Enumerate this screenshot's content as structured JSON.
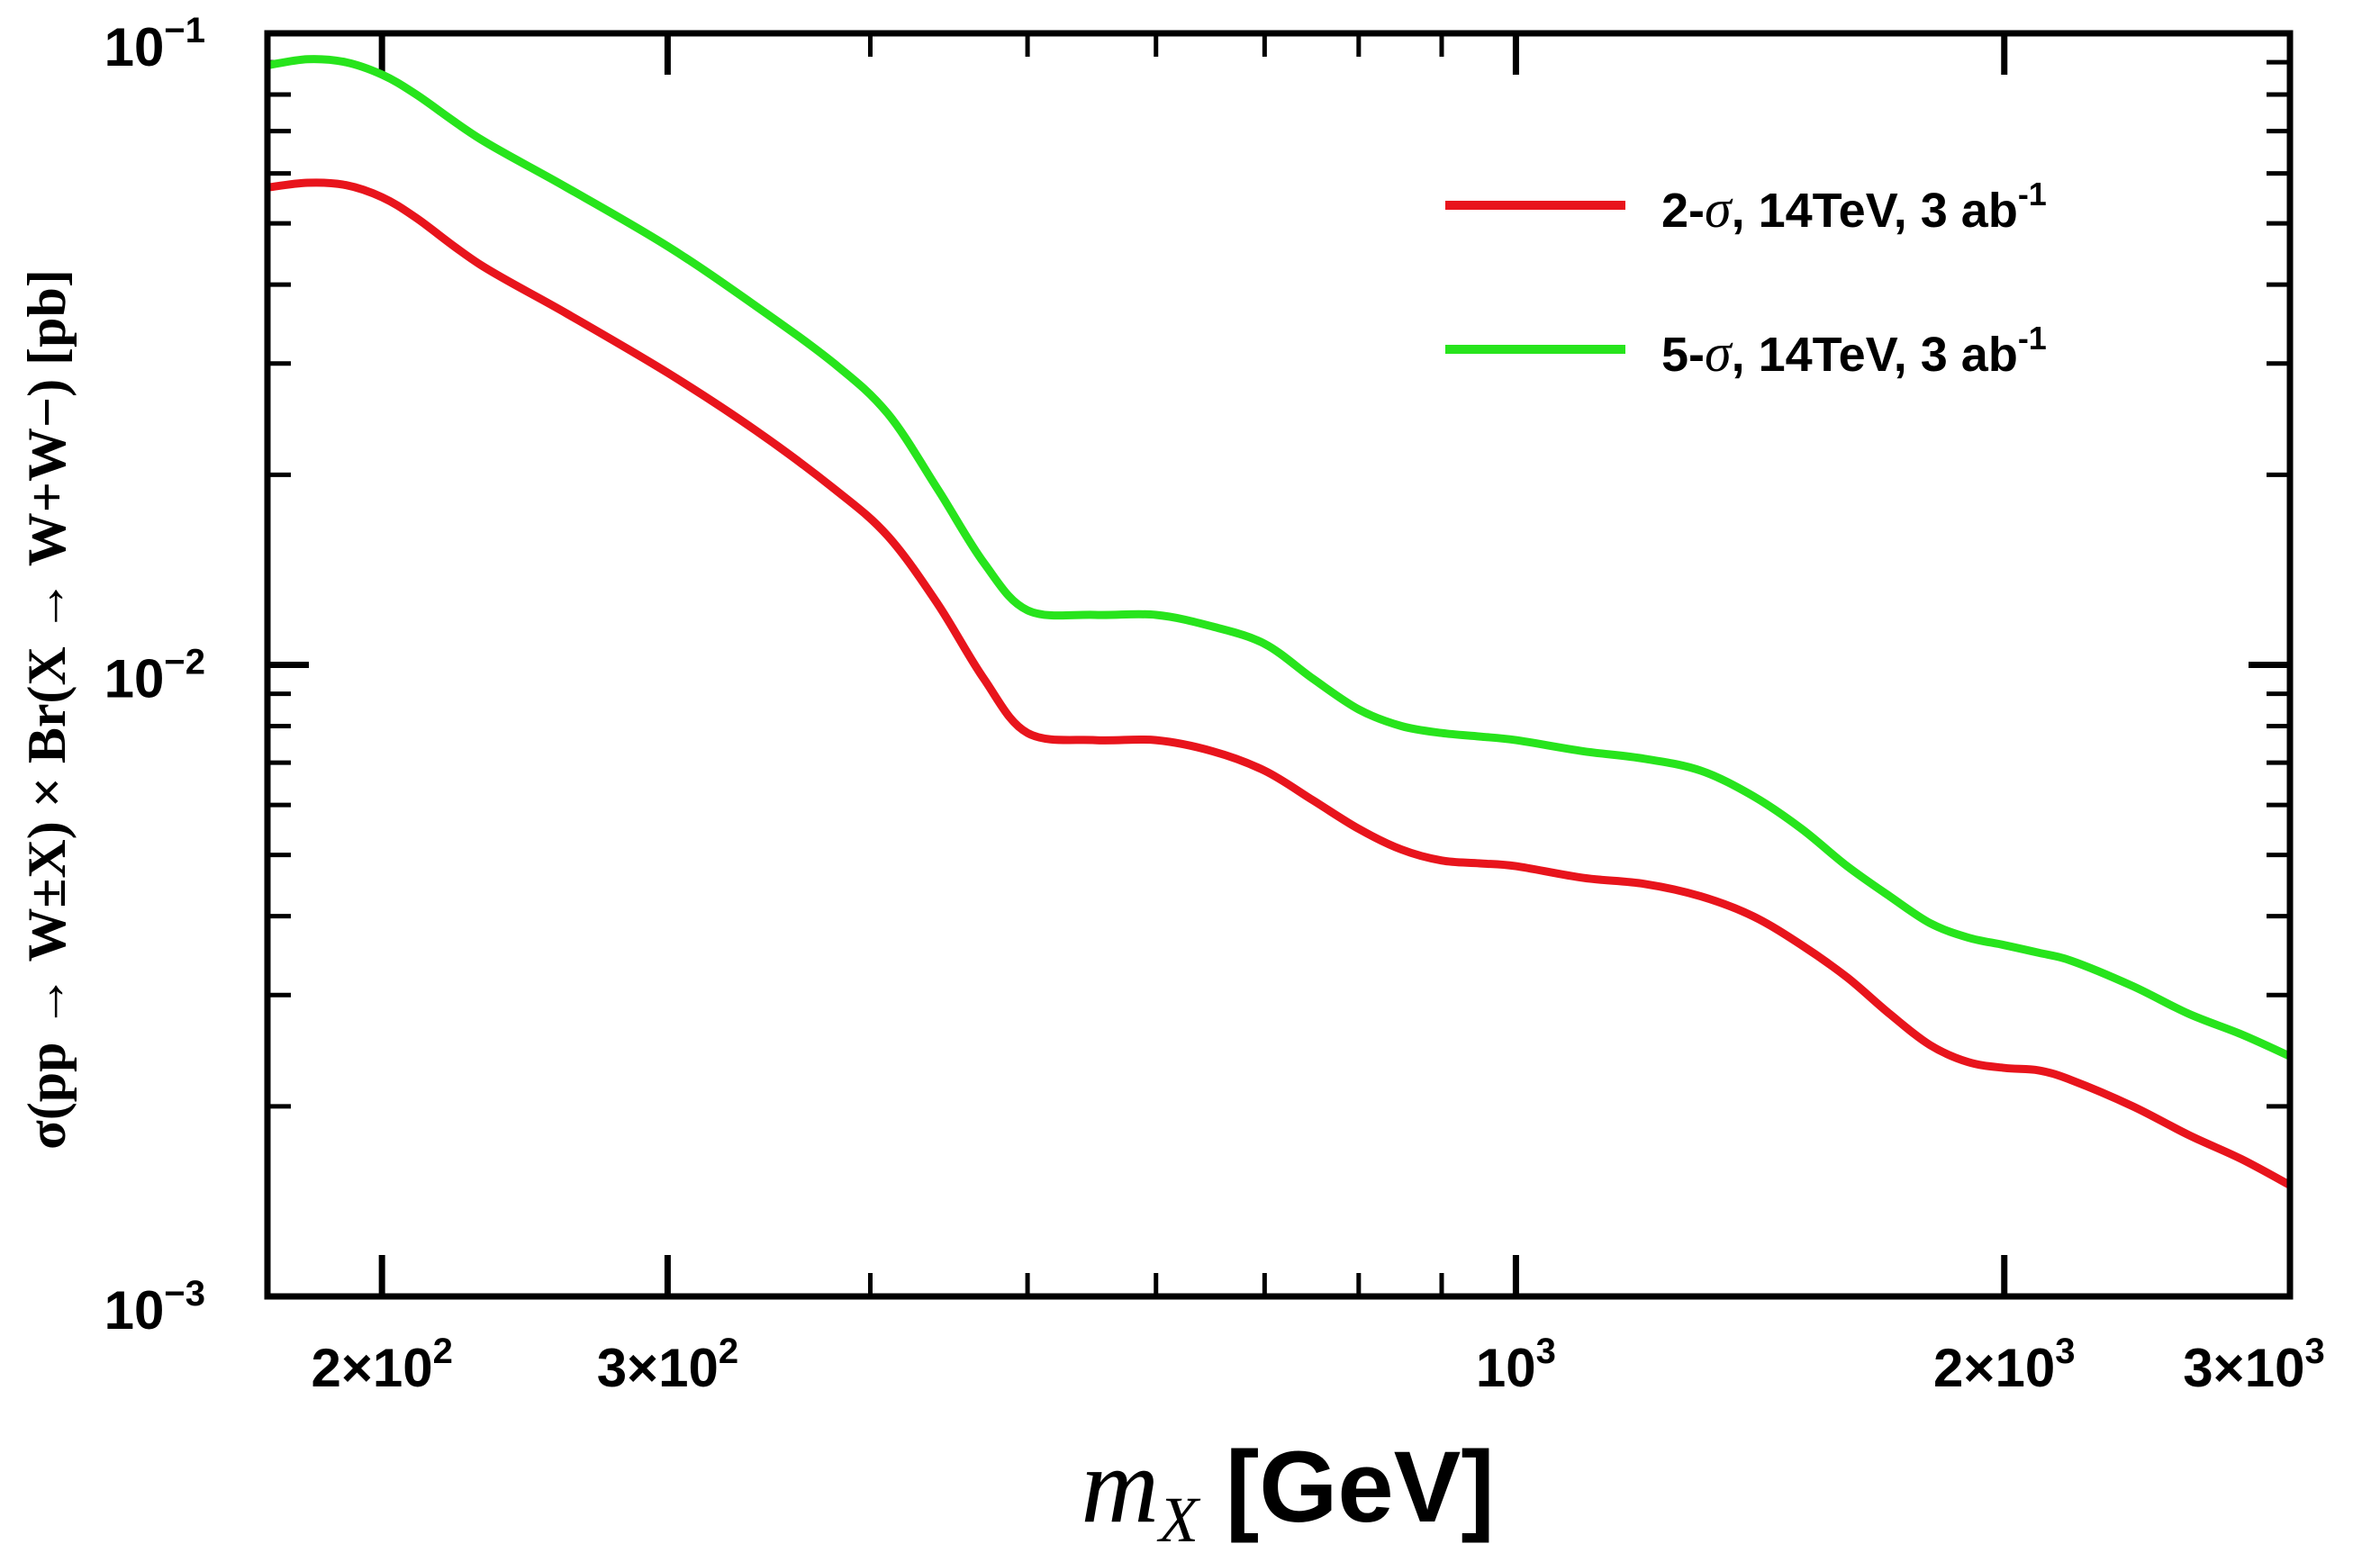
{
  "chart_data": {
    "type": "line",
    "x_scale": "log",
    "y_scale": "log",
    "xlim": [
      170,
      3000
    ],
    "ylim": [
      0.001,
      0.1
    ],
    "xlabel_main": "m",
    "xlabel_sub": "X",
    "xlabel_unit": "[GeV]",
    "ylabel": "σ(pp → W±X) × Br(X → W+W−) [pb]",
    "x_ticks": [
      {
        "value": 200,
        "mantissa": "2×10",
        "exp": "2"
      },
      {
        "value": 300,
        "mantissa": "3×10",
        "exp": "2"
      },
      {
        "value": 1000,
        "mantissa": "10",
        "exp": "3"
      },
      {
        "value": 2000,
        "mantissa": "2×10",
        "exp": "3"
      },
      {
        "value": 3000,
        "mantissa": "3×10",
        "exp": "3"
      }
    ],
    "y_ticks": [
      {
        "value": 0.1,
        "mantissa": "10",
        "exp": "−1"
      },
      {
        "value": 0.01,
        "mantissa": "10",
        "exp": "−2"
      },
      {
        "value": 0.001,
        "mantissa": "10",
        "exp": "−3"
      }
    ],
    "legend_position": "top-right",
    "series": [
      {
        "name": "2-σ, 14TeV, 3 ab-1",
        "legend_prefix": "2-",
        "legend_sigma": "σ",
        "legend_suffix": ", 14TeV, 3 ab",
        "legend_sup": "-1",
        "color": "#e8141c",
        "x": [
          170,
          180,
          190,
          200,
          210,
          230,
          260,
          300,
          340,
          380,
          410,
          440,
          470,
          500,
          550,
          600,
          650,
          700,
          750,
          800,
          850,
          900,
          950,
          1000,
          1100,
          1200,
          1300,
          1400,
          1500,
          1600,
          1700,
          1800,
          1900,
          2000,
          2100,
          2200,
          2400,
          2600,
          2800,
          3000
        ],
        "y": [
          0.057,
          0.058,
          0.0575,
          0.055,
          0.051,
          0.043,
          0.036,
          0.029,
          0.0235,
          0.019,
          0.016,
          0.0125,
          0.0095,
          0.0078,
          0.0076,
          0.0076,
          0.0073,
          0.0068,
          0.0061,
          0.0055,
          0.0051,
          0.0049,
          0.00485,
          0.0048,
          0.0046,
          0.0045,
          0.0043,
          0.004,
          0.0036,
          0.0032,
          0.0028,
          0.0025,
          0.00235,
          0.0023,
          0.00228,
          0.0022,
          0.002,
          0.0018,
          0.00165,
          0.0015
        ]
      },
      {
        "name": "5-σ, 14TeV, 3 ab-1",
        "legend_prefix": "5-",
        "legend_sigma": "σ",
        "legend_suffix": ", 14TeV, 3 ab",
        "legend_sup": "-1",
        "color": "#27e41c",
        "x": [
          170,
          180,
          190,
          200,
          210,
          230,
          260,
          300,
          340,
          380,
          410,
          440,
          470,
          500,
          550,
          600,
          650,
          700,
          750,
          800,
          850,
          900,
          950,
          1000,
          1100,
          1200,
          1300,
          1400,
          1500,
          1600,
          1700,
          1800,
          1900,
          2000,
          2100,
          2200,
          2400,
          2600,
          2800,
          3000
        ],
        "y": [
          0.089,
          0.091,
          0.09,
          0.086,
          0.08,
          0.068,
          0.057,
          0.046,
          0.037,
          0.03,
          0.025,
          0.019,
          0.0145,
          0.0122,
          0.012,
          0.012,
          0.0115,
          0.0108,
          0.0095,
          0.0085,
          0.008,
          0.0078,
          0.0077,
          0.0076,
          0.0073,
          0.0071,
          0.0068,
          0.0062,
          0.0055,
          0.0048,
          0.0043,
          0.0039,
          0.0037,
          0.0036,
          0.0035,
          0.0034,
          0.0031,
          0.0028,
          0.0026,
          0.0024
        ]
      }
    ]
  }
}
